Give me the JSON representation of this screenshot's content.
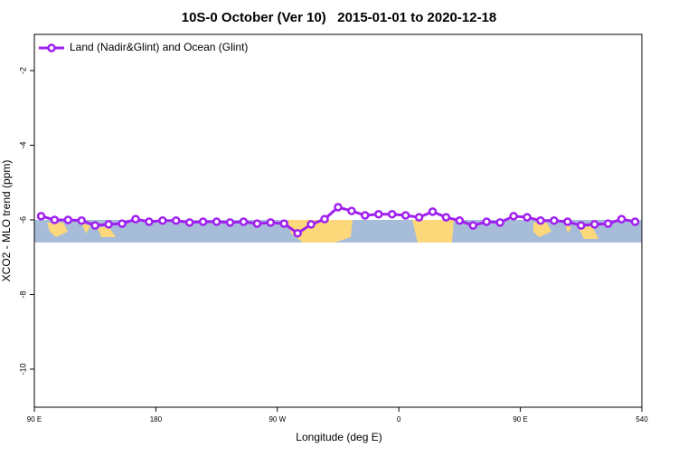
{
  "chart_data": {
    "type": "line",
    "title": "10S-0 October (Ver 10)   2015-01-01 to 2020-12-18",
    "x_label": "Longitude (deg E)",
    "y_label": "XCO2 - MLO trend (ppm)",
    "x": [
      95,
      105,
      115,
      125,
      135,
      145,
      155,
      165,
      175,
      185,
      195,
      205,
      215,
      225,
      235,
      245,
      255,
      265,
      275,
      285,
      295,
      305,
      315,
      325,
      335,
      345,
      355,
      365,
      375,
      385,
      395,
      405,
      415,
      425,
      435,
      445,
      455,
      465,
      475,
      485,
      495,
      505,
      515,
      525,
      535
    ],
    "series": [
      {
        "name": "Land (Nadir&Glint) and Ocean (Glint)",
        "color": "#a020f0",
        "values": [
          -5.9,
          -6.0,
          -6.0,
          -6.02,
          -6.15,
          -6.12,
          -6.1,
          -5.98,
          -6.05,
          -6.02,
          -6.02,
          -6.07,
          -6.05,
          -6.05,
          -6.07,
          -6.05,
          -6.1,
          -6.07,
          -6.1,
          -6.36,
          -6.12,
          -5.98,
          -5.66,
          -5.76,
          -5.88,
          -5.85,
          -5.85,
          -5.88,
          -5.93,
          -5.78,
          -5.93,
          -6.02,
          -6.15,
          -6.05,
          -6.07,
          -5.9,
          -5.93,
          -6.02,
          -6.02,
          -6.05,
          -6.15,
          -6.12,
          -6.1,
          -5.98,
          -6.05
        ]
      }
    ],
    "xlim": [
      90,
      540
    ],
    "xticks": [
      {
        "value": 90,
        "label": "90 E"
      },
      180,
      {
        "value": 270,
        "label": "90 W"
      },
      {
        "value": 360,
        "label": "0"
      },
      {
        "value": 450,
        "label": "90 E"
      },
      540
    ],
    "ylim": [
      -11.02,
      -1.03
    ],
    "yticks": [
      -2,
      -4,
      -6,
      -8,
      -10
    ],
    "legend": "top-left"
  }
}
